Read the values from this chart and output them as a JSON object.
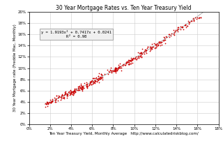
{
  "title": "30 Year Mortgage Rates vs. Ten Year Treasury Yield",
  "xlabel": "Ten Year Treasury Yield, Monthly Average",
  "xlabel2": "http://www.calculatedriskblog.com/",
  "ylabel": "30 Year Mortgage rate (Freddie Mac, Monthly)",
  "annotation": "y = 1.9193x² + 0.7417x + 0.0241\nR² = 0.98",
  "xlim": [
    0,
    0.18
  ],
  "ylim": [
    0,
    0.2
  ],
  "xticks": [
    0.0,
    0.02,
    0.04,
    0.06,
    0.08,
    0.1,
    0.12,
    0.14,
    0.16,
    0.18
  ],
  "yticks": [
    0.0,
    0.02,
    0.04,
    0.06,
    0.08,
    0.1,
    0.12,
    0.14,
    0.16,
    0.18,
    0.2
  ],
  "scatter_color": "#cc0000",
  "trendline_color": "#aaaaaa",
  "background_color": "#ffffff",
  "grid_color": "#cccccc",
  "annotation_box_color": "#f0f0f0",
  "title_fontsize": 5.5,
  "label_fontsize": 4.0,
  "tick_fontsize": 4.0,
  "annotation_fontsize": 4.0
}
